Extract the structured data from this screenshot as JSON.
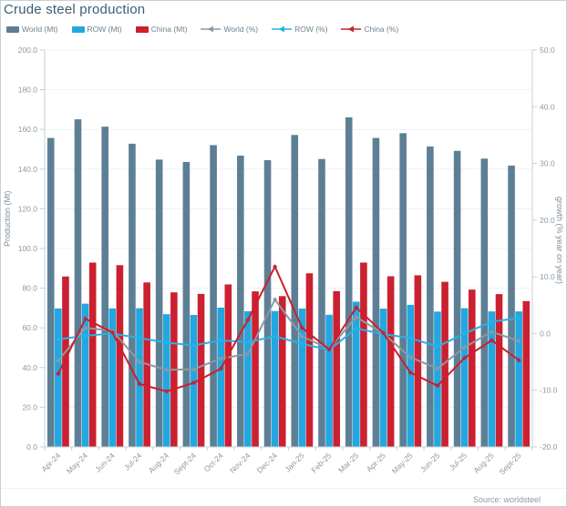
{
  "title": "Crude steel production",
  "source": "Source: worldsteel",
  "colors": {
    "world_bar": "#5d7f95",
    "row_bar": "#22a7e0",
    "china_bar": "#cb2030",
    "world_line": "#8b99a4",
    "row_line": "#29b1e6",
    "china_line": "#cc1f2d",
    "title_text": "#3d5d72",
    "tick_text": "#8d9aa3",
    "axis_line": "#c7d0d6",
    "grid_line": "#eef1f3",
    "legend_text": "#70828e"
  },
  "legend": {
    "items": [
      {
        "label": "World (Mt)",
        "type": "bar",
        "color": "#5d7f95"
      },
      {
        "label": "ROW (Mt)",
        "type": "bar",
        "color": "#22a7e0"
      },
      {
        "label": "China (Mt)",
        "type": "bar",
        "color": "#cb2030"
      },
      {
        "label": "World (%)",
        "type": "line",
        "color": "#8b99a4"
      },
      {
        "label": "ROW (%)",
        "type": "line",
        "color": "#29b1e6"
      },
      {
        "label": "China (%)",
        "type": "line",
        "color": "#cc1f2d"
      }
    ]
  },
  "chart_data": {
    "type": "bar+line combo, dual axis",
    "title": "Crude steel production",
    "categories": [
      "Apr-24",
      "May-24",
      "Jun-24",
      "Jul-24",
      "Aug-24",
      "Sept-24",
      "Oct-24",
      "Nov-24",
      "Dec-24",
      "Jan-25",
      "Feb-25",
      "Mar-25",
      "Apr-25",
      "May-25",
      "Jun-25",
      "Jul-25",
      "Aug-25",
      "Sept-25"
    ],
    "series": [
      {
        "name": "World (Mt)",
        "type": "bar",
        "axis": "left",
        "values": [
          155.7,
          165.1,
          161.4,
          152.8,
          144.8,
          143.6,
          152.1,
          146.8,
          144.5,
          157.2,
          145.1,
          166.1,
          155.7,
          158.1,
          151.4,
          149.2,
          145.3,
          141.8
        ]
      },
      {
        "name": "ROW (Mt)",
        "type": "bar",
        "axis": "left",
        "values": [
          69.8,
          72.2,
          69.8,
          69.9,
          66.9,
          66.5,
          70.2,
          68.4,
          68.5,
          69.7,
          66.6,
          73.2,
          69.7,
          71.6,
          68.2,
          69.9,
          68.3,
          68.3
        ]
      },
      {
        "name": "China (Mt)",
        "type": "bar",
        "axis": "left",
        "values": [
          85.9,
          92.9,
          91.6,
          82.9,
          77.9,
          77.1,
          81.9,
          78.4,
          76.0,
          87.5,
          78.5,
          92.9,
          86.0,
          86.5,
          83.2,
          79.3,
          77.0,
          73.5
        ]
      },
      {
        "name": "World (%)",
        "type": "line",
        "axis": "right",
        "values": [
          -4.8,
          1.0,
          0.5,
          -5.0,
          -6.4,
          -6.3,
          -4.4,
          -3.6,
          6.0,
          -0.5,
          -2.7,
          2.9,
          0.0,
          -4.2,
          -6.2,
          -2.4,
          0.3,
          -1.3
        ]
      },
      {
        "name": "ROW (%)",
        "type": "line",
        "axis": "right",
        "values": [
          -1.0,
          -0.4,
          0.0,
          -0.8,
          -1.6,
          -2.1,
          -1.2,
          -1.5,
          -0.5,
          -1.8,
          -2.9,
          0.9,
          -0.1,
          -0.8,
          -2.3,
          0.0,
          2.1,
          2.7
        ]
      },
      {
        "name": "China (%)",
        "type": "line",
        "axis": "right",
        "values": [
          -7.1,
          2.6,
          0.2,
          -8.9,
          -10.2,
          -8.7,
          -6.2,
          2.4,
          11.8,
          1.0,
          -2.8,
          4.6,
          0.1,
          -6.9,
          -9.2,
          -4.3,
          -1.2,
          -4.7
        ]
      }
    ],
    "left_axis": {
      "label": "Production (Mt)",
      "min": 0,
      "max": 200,
      "step": 20,
      "tick_format": "one_decimal"
    },
    "right_axis": {
      "label": "growth (% year on year)",
      "min": -20,
      "max": 50,
      "step": 10,
      "tick_format": "one_decimal"
    },
    "grid": "horizontal, left-axis steps",
    "legend_position": "top"
  }
}
